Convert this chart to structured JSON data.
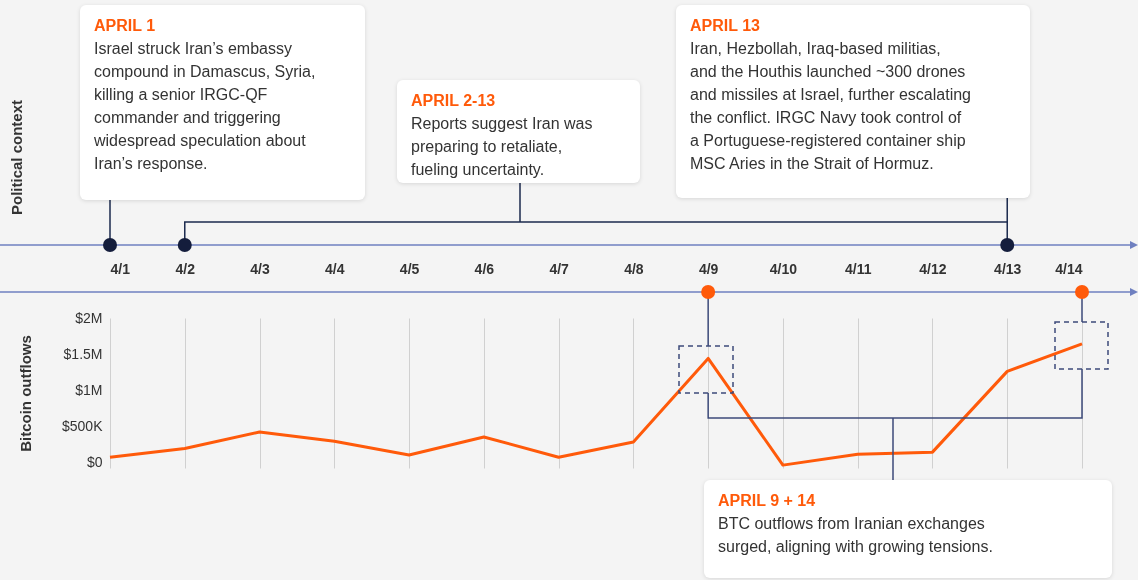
{
  "chart_data": {
    "type": "line",
    "ylabel": "Bitcoin outflows",
    "categories": [
      "4/1",
      "4/2",
      "4/3",
      "4/4",
      "4/5",
      "4/6",
      "4/7",
      "4/8",
      "4/9",
      "4/10",
      "4/11",
      "4/12",
      "4/13",
      "4/14"
    ],
    "series": [
      {
        "color": "#ff5a0a",
        "values": [
          70000,
          190000,
          420000,
          290000,
          100000,
          350000,
          70000,
          280000,
          1440000,
          -40000,
          110000,
          140000,
          1260000,
          1640000
        ]
      }
    ],
    "ylim": [
      -80000,
      2000000
    ],
    "yticks": [
      {
        "value": 0,
        "label": "$0"
      },
      {
        "value": 500000,
        "label": "$500K"
      },
      {
        "value": 1000000,
        "label": "$1M"
      },
      {
        "value": 1500000,
        "label": "$1.5M"
      },
      {
        "value": 2000000,
        "label": "$2M"
      }
    ],
    "grid": "x",
    "marker": "none",
    "line_style": "solid",
    "annotations": [
      "Political context",
      "APRIL 1",
      "Israel struck Iran’s embassy\ncompound in Damascus, Syria,\nkilling a senior IRGC-QF\ncommander and triggering\nwidespread speculation about\nIran’s response.",
      "APRIL 2-13",
      "Reports suggest Iran was\npreparing to retaliate,\nfueling uncertainty.",
      "APRIL 13",
      "Iran, Hezbollah, Iraq-based militias,\nand the Houthis launched ~300 drones\nand missiles at Israel, further escalating\nthe conflict. IRGC Navy took control of\na Portuguese-registered container ship\nMSC Aries in the Strait of Hormuz.",
      "APRIL 9 + 14",
      "BTC outflows from Iranian exchanges\nsurged, aligning with growing tensions."
    ]
  }
}
